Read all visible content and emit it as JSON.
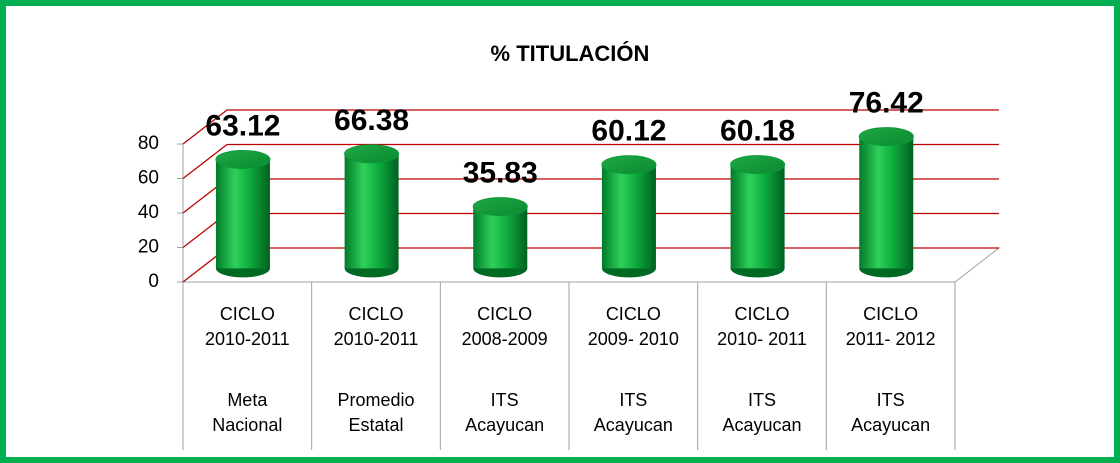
{
  "chart_data": {
    "type": "bar",
    "title": "% TITULACIÓN",
    "categories": [
      [
        "CICLO",
        "2010-2011"
      ],
      [
        "CICLO",
        "2010-2011"
      ],
      [
        "CICLO",
        "2008-2009"
      ],
      [
        "CICLO",
        "2009- 2010"
      ],
      [
        "CICLO",
        "2010- 2011"
      ],
      [
        "CICLO",
        "2011- 2012"
      ]
    ],
    "category_groups": [
      [
        "Meta",
        "Nacional"
      ],
      [
        "Promedio",
        "Estatal"
      ],
      [
        "ITS",
        "Acayucan"
      ],
      [
        "ITS",
        "Acayucan"
      ],
      [
        "ITS",
        "Acayucan"
      ],
      [
        "ITS",
        "Acayucan"
      ]
    ],
    "values": [
      63.12,
      66.38,
      35.83,
      60.12,
      60.18,
      76.42
    ],
    "color": "#00b050",
    "grid_color": "#c00000",
    "ylim": [
      0,
      80
    ],
    "yticks": [
      0,
      20,
      40,
      60,
      80
    ],
    "grid": true
  }
}
